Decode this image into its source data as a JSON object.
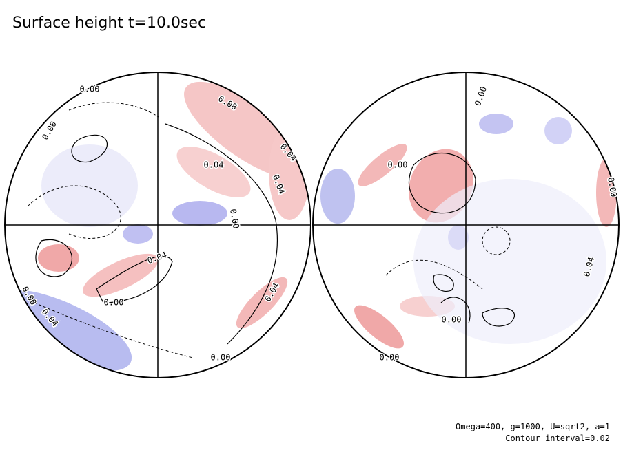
{
  "title": "Surface height t=10.0sec",
  "footer": [
    "Omega=400, g=1000, U=sqrt2, a=1",
    "Contour interval=0.02"
  ],
  "contour_labels": [
    "0.00",
    "0.00",
    "0.08",
    "0.04",
    "0.04",
    "0.04",
    "0.00",
    "0.04",
    "0.00",
    "0.00",
    "0.04",
    "0.04",
    "0.00",
    "0.00",
    "0.00",
    "0.04",
    "0.00",
    "0.00",
    "0.00"
  ]
}
